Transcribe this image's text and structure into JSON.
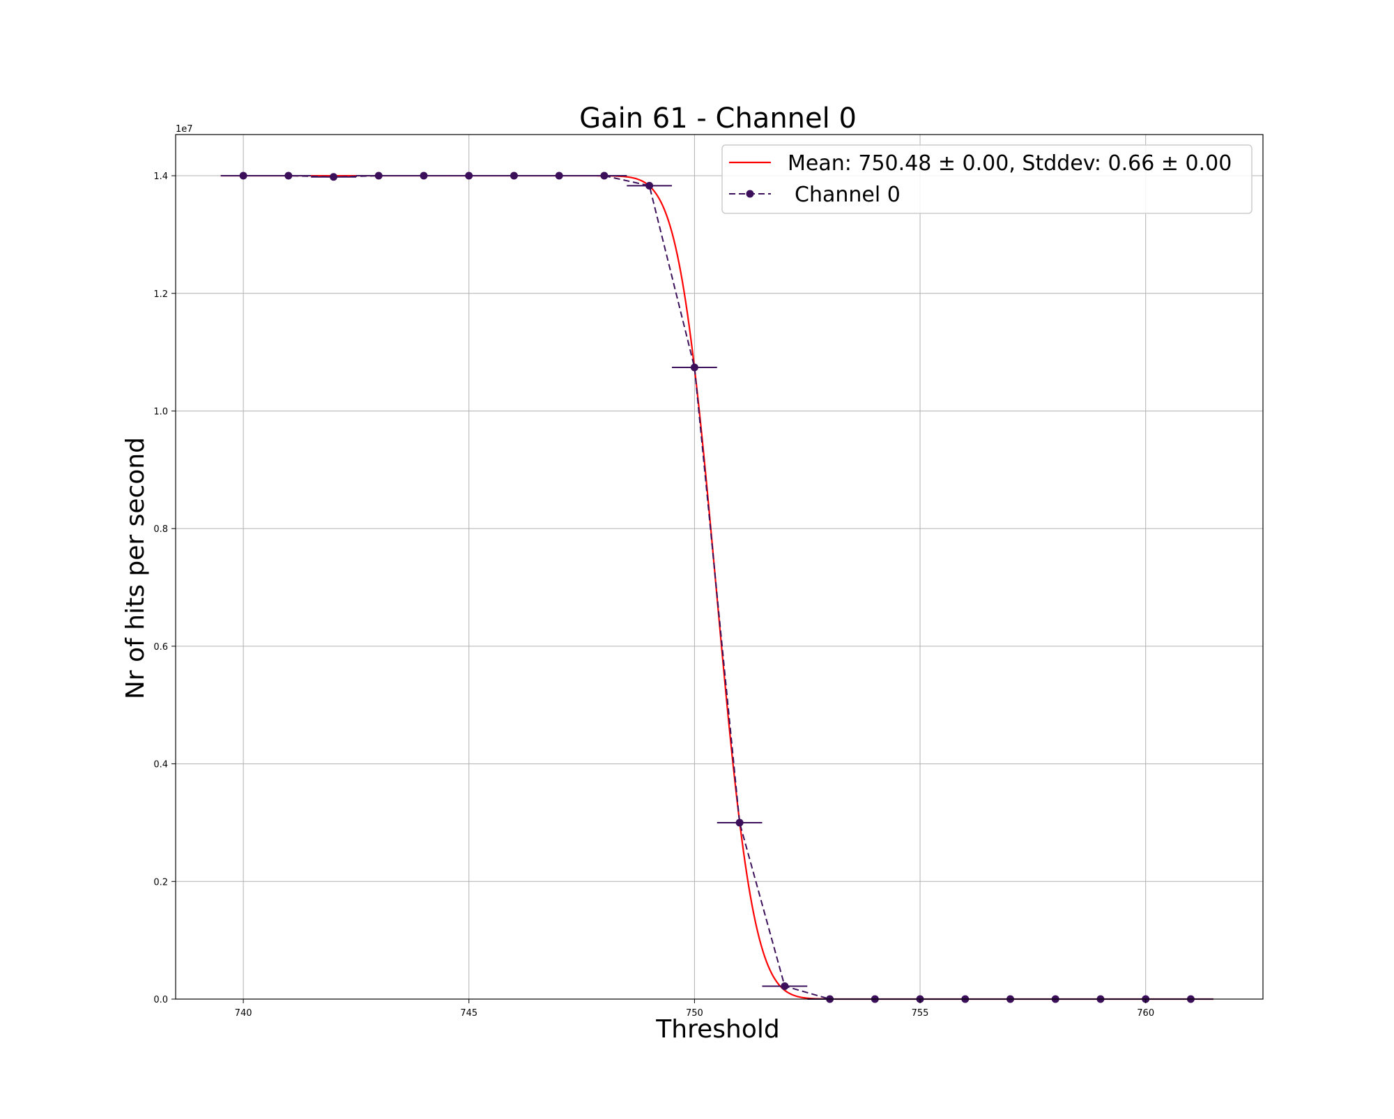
{
  "chart_data": {
    "type": "line",
    "title": "Gain 61 - Channel 0",
    "xlabel": "Threshold",
    "ylabel": "Nr of hits per second",
    "y_offset_label": "1e7",
    "xlim": [
      738.5,
      762.6
    ],
    "ylim": [
      0,
      1.47
    ],
    "grid": true,
    "legend_position": "top-right",
    "x_ticks": [
      740,
      745,
      750,
      755,
      760
    ],
    "x_tick_labels": [
      "740",
      "745",
      "750",
      "755",
      "760"
    ],
    "y_ticks": [
      0.0,
      0.2,
      0.4,
      0.6,
      0.8,
      1.0,
      1.2,
      1.4
    ],
    "y_tick_labels": [
      "0.0",
      "0.2",
      "0.4",
      "0.6",
      "0.8",
      "1.0",
      "1.2",
      "1.4"
    ],
    "series": [
      {
        "name": "Mean: 750.48 ± 0.00, Stddev: 0.66 ± 0.00",
        "kind": "fit",
        "style": "solid",
        "color": "#ff0000",
        "mean": 750.48,
        "stddev": 0.66,
        "amplitude": 1.4,
        "x_range": [
          739.5,
          761.5
        ]
      },
      {
        "name": "Channel 0",
        "kind": "data",
        "style": "dashed",
        "color": "#3b0f5a",
        "marker_color": "#3b0f5a",
        "x_error": 0.5,
        "x": [
          740,
          741,
          742,
          743,
          744,
          745,
          746,
          747,
          748,
          749,
          750,
          751,
          752,
          753,
          754,
          755,
          756,
          757,
          758,
          759,
          760,
          761
        ],
        "y": [
          1.4,
          1.4,
          1.398,
          1.4,
          1.4,
          1.4,
          1.4,
          1.4,
          1.4,
          1.383,
          1.074,
          0.3,
          0.022,
          0.0,
          0.0,
          0.0,
          0.0,
          0.0,
          0.0,
          0.0,
          0.0,
          0.0
        ]
      }
    ]
  }
}
